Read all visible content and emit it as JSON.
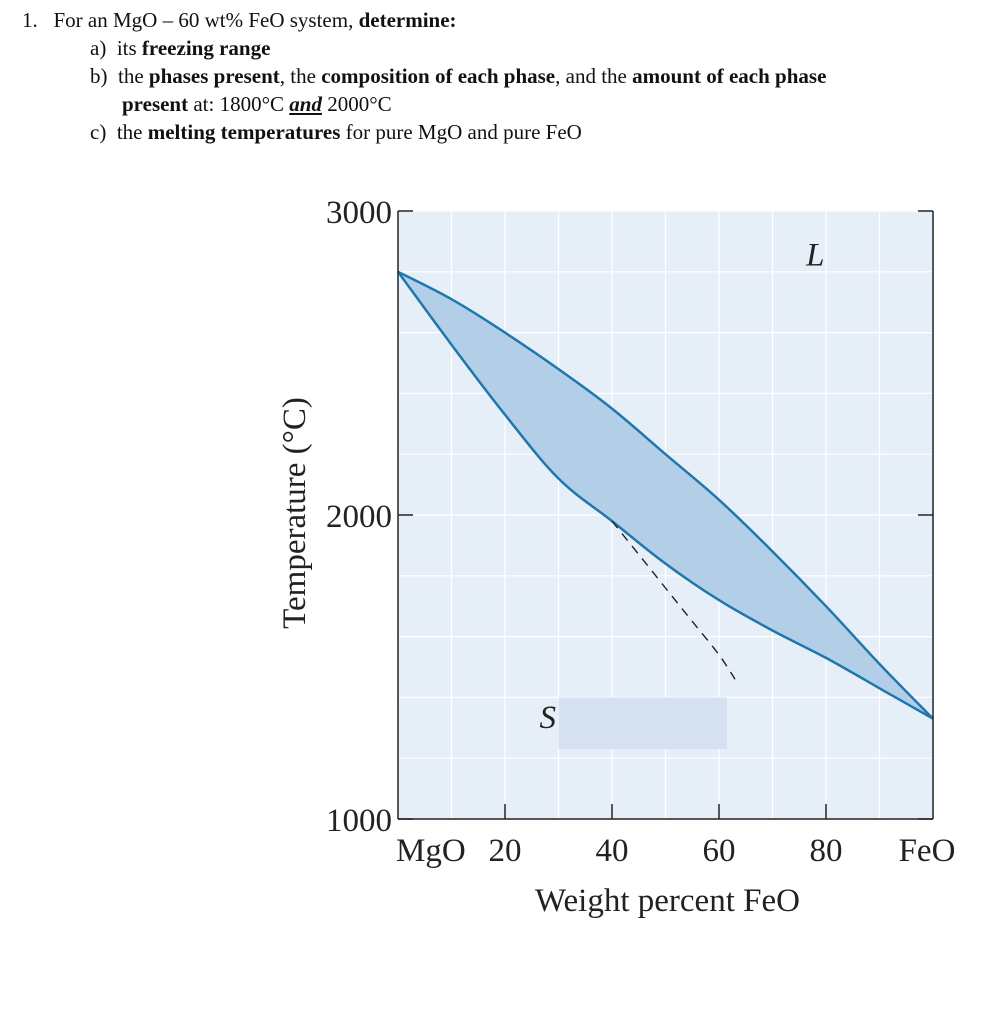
{
  "question": {
    "number": "1.",
    "intro_plain": "For an MgO – 60 wt% FeO system,",
    "intro_bold": "determine:",
    "a": {
      "label": "a)",
      "plain": "its",
      "bold": "freezing range"
    },
    "b": {
      "label": "b)",
      "p1": "the",
      "b1": "phases present",
      "p2": ", the",
      "b2": "composition of each phase",
      "p3": ", and the",
      "b3": "amount of each phase",
      "b4": "present",
      "p4": " at:  1800°C ",
      "and": "and",
      "p5": " 2000°C"
    },
    "c": {
      "label": "c)",
      "plain_pre": "the",
      "bold": "melting temperatures",
      "plain_post": "for pure MgO and pure FeO"
    }
  },
  "chart_data": {
    "type": "line",
    "xlabel": "Weight percent FeO",
    "ylabel": "Temperature (°C)",
    "xlim": [
      0,
      100
    ],
    "ylim": [
      1000,
      3000
    ],
    "x_ticks": [
      0,
      20,
      40,
      60,
      80,
      100
    ],
    "x_tick_labels": [
      "MgO",
      "20",
      "40",
      "60",
      "80",
      "FeO"
    ],
    "y_ticks": [
      1000,
      2000,
      3000
    ],
    "y_tick_labels": [
      "1000",
      "2000",
      "3000"
    ],
    "grid": true,
    "region_labels": [
      "L",
      "S"
    ],
    "colors": {
      "plot_bg": "#e6eef8",
      "grid": "#ffffff",
      "two_phase_fill": "#b3cfe8",
      "boundary": "#1f77ad",
      "axis": "#222222",
      "label_box": "#d5e1f0"
    },
    "series": [
      {
        "x": [
          0,
          10,
          20,
          30,
          40,
          50,
          60,
          70,
          80,
          90,
          100
        ],
        "y": [
          2800,
          2710,
          2600,
          2480,
          2350,
          2200,
          2050,
          1880,
          1700,
          1510,
          1330
        ]
      },
      {
        "x": [
          0,
          10,
          20,
          30,
          40,
          50,
          60,
          70,
          80,
          90,
          100
        ],
        "y": [
          2800,
          2560,
          2330,
          2120,
          1980,
          1840,
          1720,
          1620,
          1530,
          1430,
          1330
        ]
      },
      {
        "x": [
          40,
          45,
          50,
          55,
          60,
          63
        ],
        "y": [
          1980,
          1870,
          1760,
          1650,
          1540,
          1460
        ]
      }
    ]
  }
}
